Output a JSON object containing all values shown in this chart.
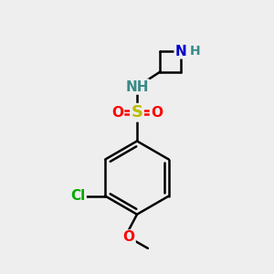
{
  "bg_color": "#eeeeee",
  "bond_color": "#000000",
  "bond_width": 1.8,
  "atom_colors": {
    "N_blue": "#0000cc",
    "NH_teal": "#3a8a8a",
    "S": "#bbbb00",
    "O": "#ff0000",
    "Cl": "#00aa00",
    "C": "#000000"
  },
  "font_size": 11,
  "fig_size": [
    3.0,
    3.0
  ],
  "dpi": 100,
  "xlim": [
    0,
    10
  ],
  "ylim": [
    0,
    10
  ]
}
